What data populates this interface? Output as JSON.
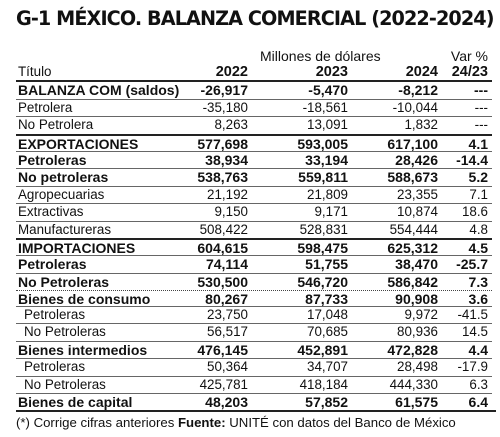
{
  "title": "G-1  MÉXICO. BALANZA COMERCIAL (2022-2024)",
  "units": "Millones de dólares",
  "var_header": "Var %",
  "columns": [
    "Título",
    "2022",
    "2023",
    "2024",
    "24/23"
  ],
  "rows": [
    {
      "label": "BALANZA COM (saldos)",
      "v2022": "-26,917",
      "v2023": "-5,470",
      "v2024": "-8,212",
      "var": "---",
      "style": "bold",
      "sep": "none",
      "indent": false
    },
    {
      "label": "Petrolera",
      "v2022": "-35,180",
      "v2023": "-18,561",
      "v2024": "-10,044",
      "var": "---",
      "style": "normal",
      "sep": "thin",
      "indent": false
    },
    {
      "label": "No Petrolera",
      "v2022": "8,263",
      "v2023": "13,091",
      "v2024": "1,832",
      "var": "---",
      "style": "normal",
      "sep": "thin",
      "indent": false
    },
    {
      "label": "EXPORTACIONES",
      "v2022": "577,698",
      "v2023": "593,005",
      "v2024": "617,100",
      "var": "4.1",
      "style": "bold",
      "sep": "bold",
      "indent": false
    },
    {
      "label": "Petroleras",
      "v2022": "38,934",
      "v2023": "33,194",
      "v2024": "28,426",
      "var": "-14.4",
      "style": "bold",
      "sep": "thin",
      "indent": false
    },
    {
      "label": "No petroleras",
      "v2022": "538,763",
      "v2023": "559,811",
      "v2024": "588,673",
      "var": "5.2",
      "style": "bold",
      "sep": "thin",
      "indent": false
    },
    {
      "label": "Agropecuarias",
      "v2022": "21,192",
      "v2023": "21,809",
      "v2024": "23,355",
      "var": "7.1",
      "style": "normal",
      "sep": "thin",
      "indent": false
    },
    {
      "label": "Extractivas",
      "v2022": "9,150",
      "v2023": "9,171",
      "v2024": "10,874",
      "var": "18.6",
      "style": "normal",
      "sep": "thin",
      "indent": false
    },
    {
      "label": "Manufactureras",
      "v2022": "508,422",
      "v2023": "528,831",
      "v2024": "554,444",
      "var": "4.8",
      "style": "normal",
      "sep": "thin",
      "indent": false
    },
    {
      "label": "IMPORTACIONES",
      "v2022": "604,615",
      "v2023": "598,475",
      "v2024": "625,312",
      "var": "4.5",
      "style": "bold",
      "sep": "bold",
      "indent": false
    },
    {
      "label": "Petroleras",
      "v2022": "74,114",
      "v2023": "51,755",
      "v2024": "38,470",
      "var": "-25.7",
      "style": "bold",
      "sep": "thin",
      "indent": false
    },
    {
      "label": "No Petroleras",
      "v2022": "530,500",
      "v2023": "546,720",
      "v2024": "586,842",
      "var": "7.3",
      "style": "bold",
      "sep": "thin",
      "indent": false
    },
    {
      "label": "Bienes de consumo",
      "v2022": "80,267",
      "v2023": "87,733",
      "v2024": "90,908",
      "var": "3.6",
      "style": "bold",
      "sep": "dotted",
      "indent": false
    },
    {
      "label": "Petroleras",
      "v2022": "23,750",
      "v2023": "17,048",
      "v2024": "9,972",
      "var": "-41.5",
      "style": "normal",
      "sep": "thin",
      "indent": true
    },
    {
      "label": "No Petroleras",
      "v2022": "56,517",
      "v2023": "70,685",
      "v2024": "80,936",
      "var": "14.5",
      "style": "normal",
      "sep": "thin",
      "indent": true
    },
    {
      "label": "Bienes intermedios",
      "v2022": "476,145",
      "v2023": "452,891",
      "v2024": "472,828",
      "var": "4.4",
      "style": "bold",
      "sep": "thin",
      "indent": false
    },
    {
      "label": "Petroleras",
      "v2022": "50,364",
      "v2023": "34,707",
      "v2024": "28,498",
      "var": "-17.9",
      "style": "normal",
      "sep": "thin",
      "indent": true
    },
    {
      "label": "No Petroleras",
      "v2022": "425,781",
      "v2023": "418,184",
      "v2024": "444,330",
      "var": "6.3",
      "style": "normal",
      "sep": "thin",
      "indent": true
    },
    {
      "label": "Bienes de capital",
      "v2022": "48,203",
      "v2023": "57,852",
      "v2024": "61,575",
      "var": "6.4",
      "style": "bold",
      "sep": "thin",
      "indent": false
    }
  ],
  "footnote": {
    "note": "(*) Corrige cifras anteriores",
    "source_label": "Fuente:",
    "source_text": "UNITÉ con datos del Banco de México"
  }
}
